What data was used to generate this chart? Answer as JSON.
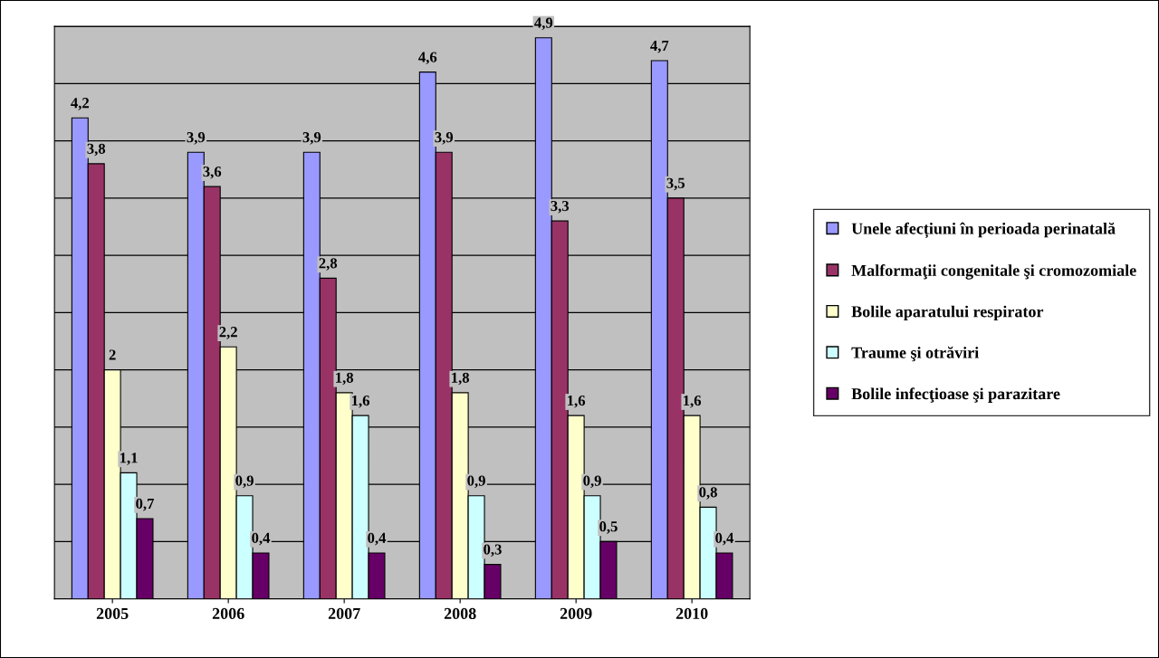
{
  "chart_data": {
    "type": "bar",
    "categories": [
      "2005",
      "2006",
      "2007",
      "2008",
      "2009",
      "2010"
    ],
    "series": [
      {
        "name": "Unele afecțiuni în perioada perinatală",
        "color": "#9999ff",
        "values": [
          4.2,
          3.9,
          3.9,
          4.6,
          4.9,
          4.7
        ],
        "value_labels": [
          "4,2",
          "3,9",
          "3,9",
          "4,6",
          "4,9",
          "4,7"
        ]
      },
      {
        "name": "Malformaţii congenitale şi cromozomiale",
        "color": "#993366",
        "values": [
          3.8,
          3.6,
          2.8,
          3.9,
          3.3,
          3.5
        ],
        "value_labels": [
          "3,8",
          "3,6",
          "2,8",
          "3,9",
          "3,3",
          "3,5"
        ]
      },
      {
        "name": "Bolile aparatului respirator",
        "color": "#ffffcc",
        "values": [
          2,
          2.2,
          1.8,
          1.8,
          1.6,
          1.6
        ],
        "value_labels": [
          "2",
          "2,2",
          "1,8",
          "1,8",
          "1,6",
          "1,6"
        ]
      },
      {
        "name": "Traume şi otrăviri",
        "color": "#ccffff",
        "values": [
          1.1,
          0.9,
          1.6,
          0.9,
          0.9,
          0.8
        ],
        "value_labels": [
          "1,1",
          "0,9",
          "1,6",
          "0,9",
          "0,9",
          "0,8"
        ]
      },
      {
        "name": "Bolile infecţioase şi parazitare",
        "color": "#660066",
        "values": [
          0.7,
          0.4,
          0.4,
          0.3,
          0.5,
          0.4
        ],
        "value_labels": [
          "0,7",
          "0,4",
          "0,4",
          "0,3",
          "0,5",
          "0,4"
        ]
      }
    ],
    "ylim": [
      0,
      5
    ],
    "yticks": [
      {
        "value": 0,
        "label": null
      },
      {
        "value": 0.5,
        "label": null
      },
      {
        "value": 1,
        "label": null
      },
      {
        "value": 1.5,
        "label": null
      },
      {
        "value": 2,
        "label": null
      },
      {
        "value": 2.5,
        "label": null
      },
      {
        "value": 3,
        "label": null
      },
      {
        "value": 3.5,
        "label": null
      },
      {
        "value": 4,
        "label": null
      },
      {
        "value": 4.5,
        "label": null
      },
      {
        "value": 5,
        "label": null
      }
    ],
    "grid": "y",
    "legend": "right"
  }
}
